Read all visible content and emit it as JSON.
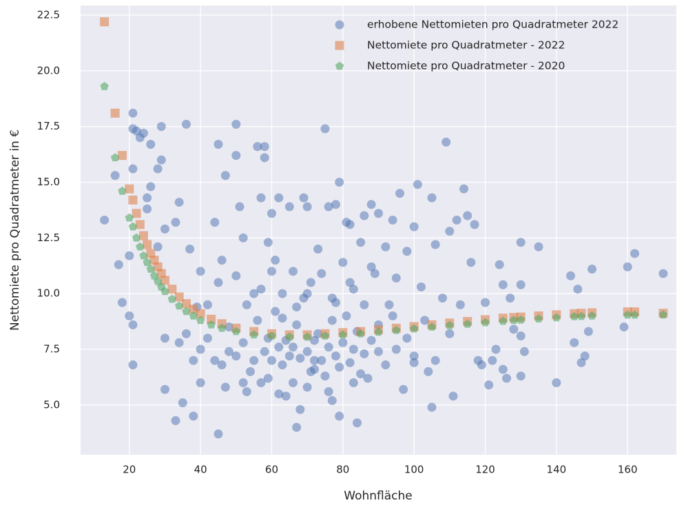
{
  "chart_data": {
    "type": "scatter",
    "xlabel": "Wohnfläche",
    "ylabel": "Nettomiete pro Quadratmeter in €",
    "xlim": [
      6.3,
      173.7
    ],
    "ylim": [
      2.77,
      22.93
    ],
    "xticks": [
      20,
      40,
      60,
      80,
      100,
      120,
      140,
      160
    ],
    "yticks": [
      {
        "value": 5,
        "label": "5.0"
      },
      7.5,
      {
        "value": 10,
        "label": "10.0"
      },
      12.5,
      {
        "value": 15,
        "label": "15.0"
      },
      17.5,
      {
        "value": 20,
        "label": "20.0"
      },
      22.5
    ],
    "grid": true,
    "legend": "upper right",
    "series": [
      {
        "name": "erhobene Nettomieten pro Quadratmeter 2022",
        "color": "#4c72b0",
        "marker": "circle",
        "x": [
          13,
          16,
          17,
          18,
          20,
          20,
          21,
          21,
          21,
          22,
          21,
          21,
          23,
          24,
          25,
          25,
          26,
          26,
          28,
          28,
          29,
          29,
          30,
          30,
          30,
          33,
          33,
          34,
          35,
          36,
          37,
          38,
          40,
          40,
          42,
          44,
          45,
          45,
          46,
          47,
          48,
          50,
          50,
          51,
          52,
          53,
          55,
          56,
          57,
          58,
          58,
          59,
          60,
          61,
          62,
          63,
          64,
          65,
          66,
          67,
          68,
          69,
          70,
          71,
          72,
          73,
          75,
          76,
          76,
          77,
          78,
          79,
          79,
          80,
          81,
          82,
          83,
          84,
          85,
          86,
          87,
          88,
          89,
          90,
          90,
          92,
          93,
          94,
          95,
          96,
          97,
          98,
          100,
          100,
          101,
          102,
          104,
          105,
          105,
          106,
          108,
          109,
          110,
          111,
          112,
          113,
          114,
          115,
          116,
          117,
          118,
          119,
          120,
          121,
          122,
          123,
          124,
          125,
          125,
          126,
          127,
          128,
          130,
          130,
          130,
          131,
          130,
          135,
          140,
          144,
          145,
          146,
          147,
          148,
          149,
          150,
          160,
          162,
          159,
          170,
          40,
          42,
          44,
          46,
          48,
          50,
          52,
          54,
          55,
          56,
          58,
          59,
          60,
          61,
          62,
          63,
          64,
          65,
          66,
          67,
          68,
          69,
          70,
          71,
          72,
          73,
          74,
          75,
          76,
          77,
          78,
          79,
          80,
          81,
          82,
          83,
          84,
          85,
          86,
          88,
          90,
          92,
          95,
          98,
          100,
          103,
          106,
          110,
          34,
          36,
          38,
          39,
          45,
          50,
          53,
          57,
          60,
          63,
          67,
          70,
          74,
          78,
          82,
          86,
          88,
          94,
          57,
          62,
          70,
          77,
          83,
          52,
          47,
          66,
          72,
          59
        ],
        "values": [
          13.3,
          15.3,
          11.3,
          9.6,
          11.7,
          9.0,
          8.6,
          18.1,
          17.4,
          17.3,
          15.6,
          6.8,
          17.0,
          17.2,
          14.3,
          13.8,
          14.8,
          16.7,
          15.6,
          12.1,
          17.5,
          16.0,
          12.9,
          8.0,
          5.7,
          13.2,
          4.3,
          14.1,
          5.1,
          17.6,
          12.0,
          4.5,
          11.0,
          6.0,
          9.5,
          13.2,
          16.7,
          3.7,
          11.5,
          15.3,
          7.4,
          17.6,
          16.2,
          13.9,
          12.5,
          5.6,
          10.0,
          16.6,
          14.3,
          16.6,
          16.1,
          12.3,
          13.6,
          11.5,
          14.3,
          8.9,
          5.4,
          13.9,
          11.0,
          4.0,
          4.8,
          14.3,
          13.9,
          10.5,
          6.6,
          12.0,
          17.4,
          13.9,
          5.6,
          9.8,
          14.0,
          15.0,
          4.5,
          11.4,
          13.2,
          13.1,
          10.2,
          4.2,
          12.3,
          13.5,
          6.2,
          14.0,
          10.9,
          7.4,
          13.6,
          12.1,
          9.5,
          13.3,
          10.7,
          14.5,
          5.7,
          11.9,
          13.0,
          6.9,
          14.9,
          10.3,
          6.5,
          14.3,
          4.9,
          12.2,
          9.8,
          16.8,
          12.8,
          5.4,
          13.3,
          9.5,
          14.7,
          13.5,
          11.4,
          13.1,
          7.0,
          6.8,
          9.6,
          5.9,
          7.0,
          7.5,
          11.3,
          10.4,
          6.6,
          6.2,
          9.8,
          8.4,
          12.3,
          10.4,
          8.1,
          7.4,
          6.3,
          12.1,
          6.0,
          10.8,
          7.8,
          10.2,
          6.9,
          7.2,
          8.3,
          11.1,
          11.2,
          11.8,
          8.5,
          10.9,
          7.5,
          8.0,
          7.0,
          6.8,
          8.5,
          7.2,
          7.8,
          6.5,
          7.0,
          8.8,
          7.4,
          6.2,
          7.0,
          9.2,
          7.6,
          6.8,
          7.9,
          7.2,
          6.0,
          8.6,
          7.1,
          9.8,
          7.4,
          6.5,
          7.9,
          8.2,
          7.0,
          6.3,
          7.6,
          8.8,
          7.2,
          6.7,
          7.8,
          9.0,
          6.9,
          7.5,
          8.3,
          6.4,
          7.3,
          7.9,
          8.6,
          6.8,
          7.5,
          8.0,
          7.2,
          8.8,
          7.0,
          8.2,
          7.8,
          8.2,
          7.0,
          9.4,
          10.5,
          10.8,
          9.5,
          10.2,
          11.0,
          10.0,
          9.4,
          10.0,
          10.9,
          9.6,
          10.5,
          9.5,
          11.2,
          9.0,
          6.0,
          5.5,
          5.8,
          5.2,
          6.0,
          6.0,
          5.8,
          7.6,
          7.0,
          8.0
        ]
      },
      {
        "name": "Nettomiete pro Quadratmeter - 2022",
        "color": "#dd8452",
        "marker": "square",
        "x": [
          13,
          16,
          18,
          20,
          21,
          22,
          23,
          24,
          25,
          26,
          27,
          28,
          29,
          30,
          32,
          34,
          36,
          38,
          40,
          43,
          46,
          50,
          55,
          60,
          65,
          70,
          75,
          80,
          85,
          90,
          95,
          100,
          105,
          110,
          115,
          120,
          125,
          128,
          130,
          135,
          140,
          145,
          147,
          150,
          160,
          162,
          170
        ],
        "values": [
          22.2,
          18.1,
          16.2,
          14.7,
          14.2,
          13.6,
          13.1,
          12.6,
          12.2,
          11.8,
          11.5,
          11.2,
          10.9,
          10.6,
          10.2,
          9.85,
          9.55,
          9.3,
          9.1,
          8.85,
          8.65,
          8.45,
          8.3,
          8.2,
          8.15,
          8.15,
          8.2,
          8.25,
          8.3,
          8.38,
          8.45,
          8.52,
          8.6,
          8.68,
          8.75,
          8.83,
          8.9,
          8.93,
          8.95,
          9.0,
          9.05,
          9.1,
          9.12,
          9.14,
          9.18,
          9.18,
          9.12
        ]
      },
      {
        "name": "Nettomiete pro Quadratmeter - 2020",
        "color": "#55a868",
        "marker": "pentagon",
        "x": [
          13,
          16,
          18,
          20,
          21,
          22,
          23,
          24,
          25,
          26,
          27,
          28,
          29,
          30,
          32,
          34,
          36,
          38,
          40,
          43,
          46,
          50,
          55,
          60,
          65,
          70,
          75,
          80,
          85,
          90,
          95,
          100,
          105,
          110,
          115,
          120,
          125,
          128,
          130,
          135,
          140,
          145,
          147,
          150,
          160,
          162,
          170
        ],
        "values": [
          19.3,
          16.1,
          14.6,
          13.4,
          13.0,
          12.5,
          12.1,
          11.7,
          11.4,
          11.1,
          10.8,
          10.55,
          10.3,
          10.1,
          9.75,
          9.45,
          9.2,
          9.0,
          8.8,
          8.6,
          8.45,
          8.3,
          8.15,
          8.1,
          8.05,
          8.05,
          8.1,
          8.15,
          8.2,
          8.27,
          8.35,
          8.42,
          8.5,
          8.57,
          8.63,
          8.7,
          8.76,
          8.8,
          8.82,
          8.87,
          8.92,
          8.97,
          8.98,
          9.0,
          9.04,
          9.04,
          9.05
        ]
      }
    ]
  }
}
